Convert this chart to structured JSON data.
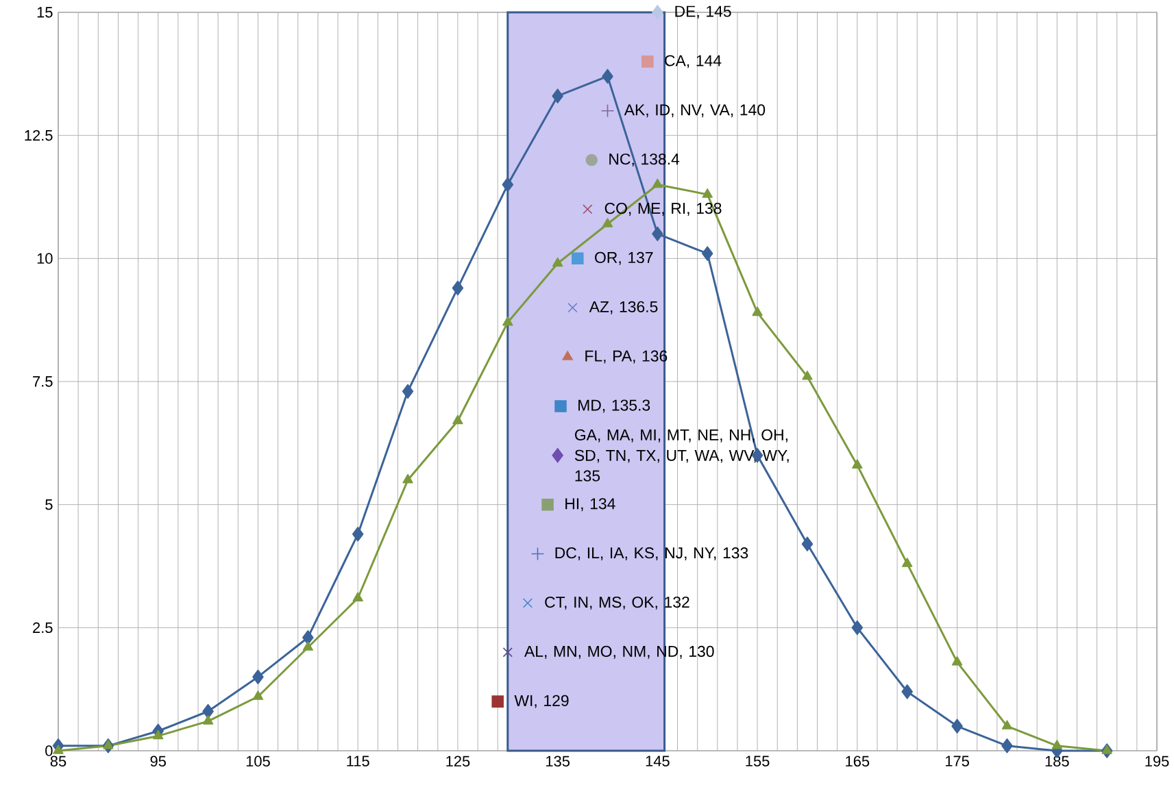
{
  "chart_data": {
    "type": "line",
    "x": [
      85,
      90,
      95,
      100,
      105,
      110,
      115,
      120,
      125,
      130,
      135,
      140,
      145,
      150,
      155,
      160,
      165,
      170,
      175,
      180,
      185,
      190
    ],
    "series": [
      {
        "color": "#3b6399",
        "marker": "diamond",
        "values": [
          0.1,
          0.1,
          0.4,
          0.8,
          1.5,
          2.3,
          4.4,
          7.3,
          9.4,
          11.5,
          13.3,
          13.7,
          10.5,
          10.1,
          6,
          4.2,
          2.5,
          1.2,
          0.5,
          0.1,
          0,
          0
        ]
      },
      {
        "color": "#7c9a3c",
        "marker": "triangle",
        "values": [
          0,
          0.1,
          0.3,
          0.6,
          1.1,
          2.1,
          3.1,
          5.5,
          6.7,
          8.7,
          9.9,
          10.7,
          11.5,
          11.3,
          8.9,
          7.6,
          5.8,
          3.8,
          1.8,
          0.5,
          0.1,
          0
        ]
      },
      {
        "type": "scatter",
        "x": [
          145
        ],
        "values": [
          15
        ],
        "color": "#b9c9e4",
        "marker": "diamond"
      },
      {
        "type": "scatter",
        "x": [
          144
        ],
        "values": [
          14
        ],
        "color": "#d99694",
        "marker": "square"
      },
      {
        "type": "scatter",
        "x": [
          140
        ],
        "values": [
          13
        ],
        "color": "#8064a2",
        "marker": "plus"
      },
      {
        "type": "scatter",
        "x": [
          138.4
        ],
        "values": [
          12
        ],
        "color": "#9ba59b",
        "marker": "circle"
      },
      {
        "type": "scatter",
        "x": [
          138
        ],
        "values": [
          11
        ],
        "color": "#a05070",
        "marker": "cross"
      },
      {
        "type": "scatter",
        "x": [
          137
        ],
        "values": [
          10
        ],
        "color": "#4f9ad8",
        "marker": "square"
      },
      {
        "type": "scatter",
        "x": [
          136.5
        ],
        "values": [
          9
        ],
        "color": "#6a7fd0",
        "marker": "cross"
      },
      {
        "type": "scatter",
        "x": [
          136
        ],
        "values": [
          8
        ],
        "color": "#c0705a",
        "marker": "triangle"
      },
      {
        "type": "scatter",
        "x": [
          135.3
        ],
        "values": [
          7
        ],
        "color": "#3f86c8",
        "marker": "square"
      },
      {
        "type": "scatter",
        "x": [
          135
        ],
        "values": [
          6
        ],
        "color": "#6f4fae",
        "marker": "diamond"
      },
      {
        "type": "scatter",
        "x": [
          134
        ],
        "values": [
          5
        ],
        "color": "#8aa070",
        "marker": "square"
      },
      {
        "type": "scatter",
        "x": [
          133
        ],
        "values": [
          4
        ],
        "color": "#4a70c0",
        "marker": "plus"
      },
      {
        "type": "scatter",
        "x": [
          132
        ],
        "values": [
          3
        ],
        "color": "#3f86c8",
        "marker": "cross"
      },
      {
        "type": "scatter",
        "x": [
          130
        ],
        "values": [
          2
        ],
        "color": "#5f4a8a",
        "marker": "cross"
      },
      {
        "type": "scatter",
        "x": [
          129
        ],
        "values": [
          1
        ],
        "color": "#9b3535",
        "marker": "square"
      }
    ],
    "annotations": [
      {
        "text": "DE, 145",
        "x": 145,
        "y": 15
      },
      {
        "text": "CA, 144",
        "x": 144,
        "y": 14
      },
      {
        "text": "AK, ID, NV, VA, 140",
        "x": 140,
        "y": 13
      },
      {
        "text": "NC, 138.4",
        "x": 138.4,
        "y": 12
      },
      {
        "text": "CO, ME, RI, 138",
        "x": 138,
        "y": 11
      },
      {
        "text": "OR, 137",
        "x": 137,
        "y": 10
      },
      {
        "text": "AZ, 136.5",
        "x": 136.5,
        "y": 9
      },
      {
        "text": "FL, PA, 136",
        "x": 136,
        "y": 8
      },
      {
        "text": "MD, 135.3",
        "x": 135.3,
        "y": 7
      },
      {
        "text": "GA, MA, MI, MT, NE, NH, OH, SD, TN, TX, UT, WA, WV, WY, 135",
        "x": 135,
        "y": 6
      },
      {
        "text": "HI, 134",
        "x": 134,
        "y": 5
      },
      {
        "text": "DC, IL, IA, KS, NJ, NY, 133",
        "x": 133,
        "y": 4
      },
      {
        "text": "CT, IN, MS, OK, 132",
        "x": 132,
        "y": 3
      },
      {
        "text": "AL, MN, MO, NM, ND, 130",
        "x": 130,
        "y": 2
      },
      {
        "text": "WI, 129",
        "x": 129,
        "y": 1
      }
    ],
    "bands": [
      {
        "axis": "x",
        "from": 130,
        "to": 145.7,
        "color": "#ccc6f2"
      }
    ],
    "xlim": [
      85,
      195
    ],
    "ylim": [
      0,
      15
    ],
    "xticks": [
      85,
      {
        "value": 87,
        "label": null
      },
      {
        "value": 89,
        "label": null
      },
      {
        "value": 91,
        "label": null
      },
      {
        "value": 93,
        "label": null
      },
      95,
      {
        "value": 97,
        "label": null
      },
      {
        "value": 99,
        "label": null
      },
      {
        "value": 101,
        "label": null
      },
      {
        "value": 103,
        "label": null
      },
      105,
      {
        "value": 107,
        "label": null
      },
      {
        "value": 109,
        "label": null
      },
      {
        "value": 111,
        "label": null
      },
      {
        "value": 113,
        "label": null
      },
      115,
      {
        "value": 117,
        "label": null
      },
      {
        "value": 119,
        "label": null
      },
      {
        "value": 121,
        "label": null
      },
      {
        "value": 123,
        "label": null
      },
      125,
      {
        "value": 127,
        "label": null
      },
      {
        "value": 129,
        "label": null
      },
      {
        "value": 131,
        "label": null
      },
      {
        "value": 133,
        "label": null
      },
      135,
      {
        "value": 137,
        "label": null
      },
      {
        "value": 139,
        "label": null
      },
      {
        "value": 141,
        "label": null
      },
      {
        "value": 143,
        "label": null
      },
      145,
      {
        "value": 147,
        "label": null
      },
      {
        "value": 149,
        "label": null
      },
      {
        "value": 151,
        "label": null
      },
      {
        "value": 153,
        "label": null
      },
      155,
      {
        "value": 157,
        "label": null
      },
      {
        "value": 159,
        "label": null
      },
      {
        "value": 161,
        "label": null
      },
      {
        "value": 163,
        "label": null
      },
      165,
      {
        "value": 167,
        "label": null
      },
      {
        "value": 169,
        "label": null
      },
      {
        "value": 171,
        "label": null
      },
      {
        "value": 173,
        "label": null
      },
      175,
      {
        "value": 177,
        "label": null
      },
      {
        "value": 179,
        "label": null
      },
      {
        "value": 181,
        "label": null
      },
      {
        "value": 183,
        "label": null
      },
      185,
      {
        "value": 187,
        "label": null
      },
      {
        "value": 189,
        "label": null
      },
      {
        "value": 191,
        "label": null
      },
      {
        "value": 193,
        "label": null
      },
      195
    ],
    "yticks": [
      0,
      2.5,
      5,
      7.5,
      10,
      12.5,
      15
    ],
    "grid": true,
    "line_style": "solid"
  }
}
